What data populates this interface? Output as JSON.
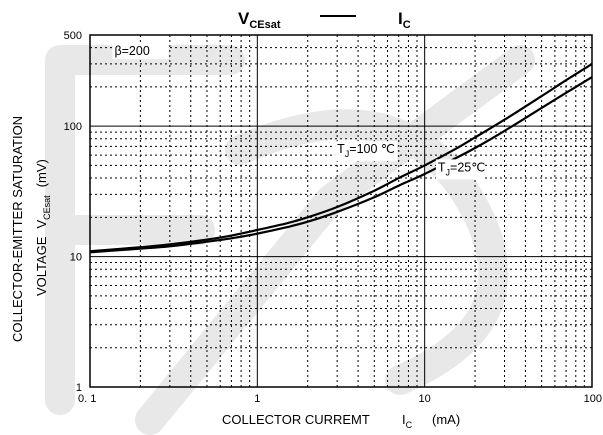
{
  "chart_data": {
    "type": "line",
    "title": {
      "v_main": "V",
      "v_sub": "CEsat",
      "i_main": "I",
      "i_sub": "C"
    },
    "xlabel": {
      "text": "COLLECTOR CURREMT",
      "symbol": "I",
      "symbol_sub": "C",
      "unit": "(mA)"
    },
    "ylabel": {
      "line1": "COLLECTOR-EMITTER SATURATION",
      "line2": "VOLTAGE",
      "symbol": "V",
      "symbol_sub": "CEsat",
      "unit": "(mV)"
    },
    "xscale": "log",
    "yscale": "log",
    "xlim": [
      0.1,
      100
    ],
    "ylim": [
      1,
      500
    ],
    "xticks": [
      {
        "value": 0.1,
        "label": "0. 1"
      },
      {
        "value": 1,
        "label": "1"
      },
      {
        "value": 10,
        "label": "10"
      },
      {
        "value": 100,
        "label": "100"
      }
    ],
    "yticks": [
      {
        "value": 1,
        "label": "1"
      },
      {
        "value": 10,
        "label": "10"
      },
      {
        "value": 100,
        "label": "100"
      },
      {
        "value": 500,
        "label": "500"
      }
    ],
    "grid": "dotted minor, solid major",
    "annotations": [
      {
        "text": "β=200",
        "x": 0.14,
        "y": 350
      },
      {
        "text_main": "T",
        "text_sub": "J",
        "text_rest": "=100 ℃",
        "x": 3.0,
        "y": 62
      },
      {
        "text_main": "T",
        "text_sub": "J",
        "text_rest": "=25℃",
        "x": 12.0,
        "y": 45
      }
    ],
    "series": [
      {
        "label_ref": "TJ=100 ℃",
        "x": [
          0.1,
          0.2,
          0.3,
          0.5,
          0.7,
          1,
          1.5,
          2,
          3,
          5,
          7,
          10,
          15,
          20,
          30,
          50,
          70,
          100
        ],
        "y": [
          11.0,
          11.8,
          12.4,
          13.5,
          14.5,
          16.0,
          18.0,
          20.0,
          24.0,
          32.0,
          40.0,
          50.0,
          66.0,
          82.0,
          112.0,
          170.0,
          225.0,
          300.0
        ]
      },
      {
        "label_ref": "TJ=25℃",
        "x": [
          0.1,
          0.2,
          0.3,
          0.5,
          0.7,
          1,
          1.5,
          2,
          3,
          5,
          7,
          10,
          15,
          20,
          30,
          50,
          70,
          100
        ],
        "y": [
          10.8,
          11.5,
          12.0,
          13.0,
          13.8,
          15.0,
          16.8,
          18.5,
          22.0,
          28.5,
          35.0,
          43.0,
          56.0,
          68.0,
          92.0,
          138.0,
          180.0,
          238.0
        ]
      }
    ]
  }
}
